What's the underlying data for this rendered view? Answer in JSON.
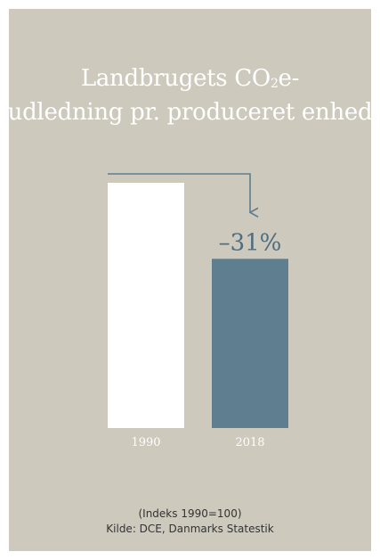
{
  "chart_data": {
    "type": "bar",
    "title_part1": "Landbrugets CO",
    "title_sub": "2",
    "title_part2": "e-",
    "title_line2": "udledning pr. produceret enhed",
    "categories": [
      "1990",
      "2018"
    ],
    "values": [
      100,
      69
    ],
    "ylim": [
      0,
      100
    ],
    "annotation": "–31%",
    "bar_colors": [
      "#ffffff",
      "#5f7e8f"
    ],
    "arrow_color": "#5f7e8f",
    "grid": false
  },
  "footnote": {
    "line1": "(Indeks 1990=100)",
    "line2": "Kilde: DCE, Danmarks Statestik"
  }
}
